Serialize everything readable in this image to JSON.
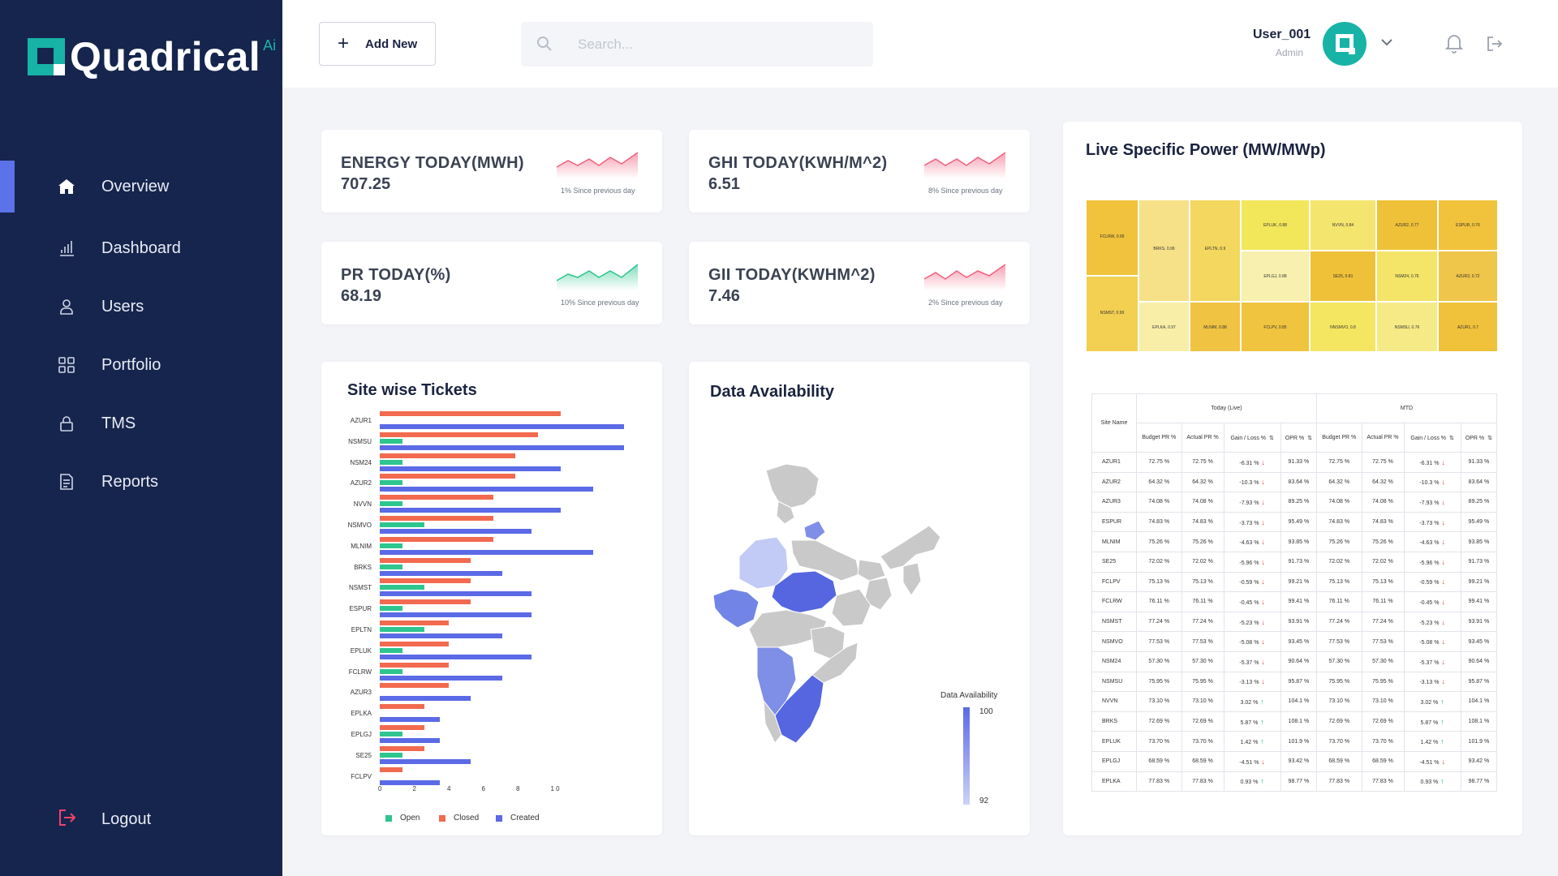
{
  "brand": {
    "name": "Quadrical",
    "suffix": "Ai"
  },
  "sidebar": {
    "items": [
      {
        "label": "Overview",
        "icon": "home-icon"
      },
      {
        "label": "Dashboard",
        "icon": "bar-chart-icon"
      },
      {
        "label": "Users",
        "icon": "user-icon"
      },
      {
        "label": "Portfolio",
        "icon": "grid-icon"
      },
      {
        "label": "TMS",
        "icon": "lock-icon"
      },
      {
        "label": "Reports",
        "icon": "document-icon"
      }
    ],
    "logout": "Logout"
  },
  "topbar": {
    "add_new": "Add New",
    "search_placeholder": "Search...",
    "user_name": "User_001",
    "user_role": "Admin"
  },
  "kpis": [
    {
      "title": "ENERGY TODAY(MWH)",
      "value": "707.25",
      "note": "1% Since previous day",
      "color": "#f0607e"
    },
    {
      "title": "GHI TODAY(KWH/M^2)",
      "value": "6.51",
      "note": "8% Since previous day",
      "color": "#f0607e"
    },
    {
      "title": "PR TODAY(%)",
      "value": "68.19",
      "note": "10% Since previous day",
      "color": "#2ec58f"
    },
    {
      "title": "GII TODAY(KWHM^2)",
      "value": "7.46",
      "note": "2% Since previous day",
      "color": "#f0607e"
    }
  ],
  "tickets": {
    "title": "Site wise Tickets",
    "legend": [
      "Open",
      "Closed",
      "Created"
    ],
    "colors": {
      "open": "#2ec58f",
      "closed": "#f26a4f",
      "created": "#5b6ae6"
    },
    "xticks": [
      "0",
      "2",
      "4",
      "6",
      "8",
      "1 0"
    ],
    "sites": [
      "AZUR1",
      "NSMSU",
      "NSM24",
      "AZUR2",
      "NVVN",
      "NSMVO",
      "MLNIM",
      "BRKS",
      "NSMST",
      "ESPUR",
      "EPLTN",
      "EPLUK",
      "FCLRW",
      "AZUR3",
      "EPLKA",
      "EPLGJ",
      "SE25",
      "FCLPV"
    ],
    "open": [
      0,
      1.3,
      1.3,
      1.3,
      1.3,
      2.6,
      1.3,
      1.3,
      2.6,
      1.3,
      2.6,
      1.3,
      1.3,
      0,
      0,
      1.3,
      1.3,
      0
    ],
    "closed": [
      10.5,
      9.2,
      7.9,
      7.9,
      6.6,
      6.6,
      6.6,
      5.3,
      5.3,
      5.3,
      4.0,
      4.0,
      4.0,
      4.0,
      2.6,
      2.6,
      2.6,
      1.3
    ],
    "created": [
      14.2,
      14.2,
      10.5,
      12.4,
      10.5,
      8.8,
      12.4,
      7.1,
      8.8,
      8.8,
      7.1,
      8.8,
      7.1,
      5.3,
      3.5,
      3.5,
      5.3,
      3.5
    ]
  },
  "availability": {
    "title": "Data Availability",
    "legend_title": "Data Availability",
    "max_label": "100",
    "min_label": "92"
  },
  "specific_power": {
    "title": "Live Specific Power (MW/MWp)",
    "cells": [
      {
        "label": "FCLRW, 0.99",
        "color": "#f1c23b"
      },
      {
        "label": "BRKS, 0.99",
        "color": "#f6e088"
      },
      {
        "label": "EPLTN, 0.9",
        "color": "#f3d75e"
      },
      {
        "label": "EPLUK, 0.88",
        "color": "#f2e65b"
      },
      {
        "label": "NVVN, 0.84",
        "color": "#f4e56e"
      },
      {
        "label": "AZUR2, 0.77",
        "color": "#efc138"
      },
      {
        "label": "ESPUR, 0.76",
        "color": "#f1c23b"
      },
      {
        "label": "EPLGJ, 0.88",
        "color": "#f7f0ae"
      },
      {
        "label": "SE25, 0.81",
        "color": "#efc138"
      },
      {
        "label": "NSM24, 0.76",
        "color": "#f4e468"
      },
      {
        "label": "AZUR3, 0.72",
        "color": "#efc54a"
      },
      {
        "label": "NSMST, 0.99",
        "color": "#f3cf52"
      },
      {
        "label": "EPLKA, 0.97",
        "color": "#f8eea8"
      },
      {
        "label": "MLNIM, 0.88",
        "color": "#f0c342"
      },
      {
        "label": "FCLPV, 0.85",
        "color": "#f0c43f"
      },
      {
        "label": "NNSMVO, 0.8",
        "color": "#f4e660"
      },
      {
        "label": "NSMSU, 0.76",
        "color": "#f5ea86"
      },
      {
        "label": "AZUR1, 0.7",
        "color": "#f0c13a"
      }
    ]
  },
  "table": {
    "site_name_header": "Site Name",
    "group_headers": [
      "Today (Live)",
      "MTD"
    ],
    "col_headers": [
      "Budget PR %",
      "Actual PR %",
      "Gain / Loss %",
      "OPR %"
    ],
    "rows": [
      {
        "site": "AZUR1",
        "budget": "72.75 %",
        "actual": "72.75 %",
        "gain": "-6.31 %",
        "dir": "down",
        "opr": "91.33 %"
      },
      {
        "site": "AZUR2",
        "budget": "64.32 %",
        "actual": "64.32 %",
        "gain": "-10.3 %",
        "dir": "down",
        "opr": "83.64 %"
      },
      {
        "site": "AZUR3",
        "budget": "74.08 %",
        "actual": "74.08 %",
        "gain": "-7.93 %",
        "dir": "down",
        "opr": "89.25 %"
      },
      {
        "site": "ESPUR",
        "budget": "74.83 %",
        "actual": "74.83 %",
        "gain": "-3.73 %",
        "dir": "down",
        "opr": "95.49 %"
      },
      {
        "site": "MLNIM",
        "budget": "75.26 %",
        "actual": "75.26 %",
        "gain": "-4.63 %",
        "dir": "down",
        "opr": "93.85 %"
      },
      {
        "site": "SE25",
        "budget": "72.02 %",
        "actual": "72.02 %",
        "gain": "-5.96 %",
        "dir": "down",
        "opr": "91.73 %"
      },
      {
        "site": "FCLPV",
        "budget": "75.13 %",
        "actual": "75.13 %",
        "gain": "-0.59 %",
        "dir": "down",
        "opr": "99.21 %"
      },
      {
        "site": "FCLRW",
        "budget": "76.11 %",
        "actual": "76.11 %",
        "gain": "-0.45 %",
        "dir": "down",
        "opr": "99.41 %"
      },
      {
        "site": "NSMST",
        "budget": "77.24 %",
        "actual": "77.24 %",
        "gain": "-5.23 %",
        "dir": "down",
        "opr": "93.91 %"
      },
      {
        "site": "NSMVO",
        "budget": "77.53 %",
        "actual": "77.53 %",
        "gain": "-5.08 %",
        "dir": "down",
        "opr": "93.45 %"
      },
      {
        "site": "NSM24",
        "budget": "57.30 %",
        "actual": "57.30 %",
        "gain": "-5.37 %",
        "dir": "down",
        "opr": "90.64 %"
      },
      {
        "site": "NSMSU",
        "budget": "75.95 %",
        "actual": "75.95 %",
        "gain": "-3.13 %",
        "dir": "down",
        "opr": "95.87 %"
      },
      {
        "site": "NVVN",
        "budget": "73.10 %",
        "actual": "73.10 %",
        "gain": "3.02 %",
        "dir": "up",
        "opr": "104.1 %"
      },
      {
        "site": "BRKS",
        "budget": "72.69 %",
        "actual": "72.69 %",
        "gain": "5.87 %",
        "dir": "up",
        "opr": "108.1 %"
      },
      {
        "site": "EPLUK",
        "budget": "73.70 %",
        "actual": "73.70 %",
        "gain": "1.42 %",
        "dir": "up",
        "opr": "101.9 %"
      },
      {
        "site": "EPLGJ",
        "budget": "68.59 %",
        "actual": "68.59 %",
        "gain": "-4.51 %",
        "dir": "down",
        "opr": "93.42 %"
      },
      {
        "site": "EPLKA",
        "budget": "77.83 %",
        "actual": "77.83 %",
        "gain": "0.93 %",
        "dir": "up",
        "opr": "98.77 %"
      }
    ]
  }
}
